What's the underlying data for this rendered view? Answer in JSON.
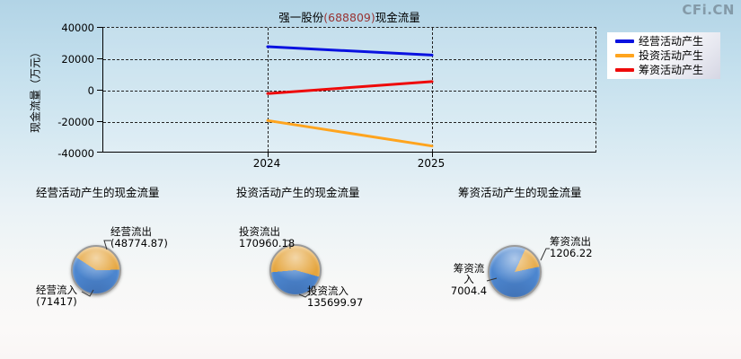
{
  "watermark": "CFi.CN",
  "colors": {
    "title_code": "#993333",
    "pie_in_blue": "#4c86cf",
    "pie_out_orange": "#e5a53d",
    "line_operating": "#0a12e0",
    "line_investing": "#ffa41e",
    "line_financing": "#ee0a0a"
  },
  "line_chart": {
    "title": {
      "prefix": "强一股份",
      "code": "(688809)",
      "suffix": "现金流量"
    },
    "y_axis": {
      "label": "现金流量（万元）",
      "ticks": [
        "40000",
        "20000",
        "0",
        "-20000",
        "-40000"
      ]
    },
    "x_axis": {
      "ticks": [
        "2024",
        "2025"
      ]
    },
    "legend": [
      {
        "label": "经营活动产生"
      },
      {
        "label": "投资活动产生"
      },
      {
        "label": "筹资活动产生"
      }
    ]
  },
  "pies": [
    {
      "title": "经营活动产生的现金流量",
      "out_label": "经营流出",
      "out_value_text": "(48774.87)",
      "in_label": "经营流入",
      "in_value_text": "(71417)"
    },
    {
      "title": "投资活动产生的现金流量",
      "out_label": "投资流出",
      "out_value_text": "170960.18",
      "in_label": "投资流入",
      "in_value_text": "135699.97"
    },
    {
      "title": "筹资活动产生的现金流量",
      "out_label": "筹资流出",
      "out_value_text": "1206.22",
      "in_label": "筹资流入",
      "in_value_text": "7004.4"
    }
  ],
  "chart_data": [
    {
      "type": "line",
      "title": "强一股份(688809)现金流量",
      "xlabel": "",
      "ylabel": "现金流量（万元）",
      "ylim": [
        -40000,
        40000
      ],
      "yticks": [
        40000,
        20000,
        0,
        -20000,
        -40000
      ],
      "x": [
        2024,
        2025
      ],
      "grid": true,
      "legend_position": "upper right outside",
      "series": [
        {
          "name": "经营活动产生",
          "color": "#0a12e0",
          "values": [
            28000,
            22642.13
          ]
        },
        {
          "name": "投资活动产生",
          "color": "#ffa41e",
          "values": [
            -19000,
            -35260.21
          ]
        },
        {
          "name": "筹资活动产生",
          "color": "#ee0a0a",
          "values": [
            -1800,
            5798.18
          ]
        }
      ]
    },
    {
      "type": "pie",
      "title": "经营活动产生的现金流量",
      "slices": [
        {
          "label": "经营流出",
          "value": 48774.87,
          "role": "out",
          "color": "#e5a53d"
        },
        {
          "label": "经营流入",
          "value": 71417,
          "role": "in",
          "color": "#4c86cf"
        }
      ]
    },
    {
      "type": "pie",
      "title": "投资活动产生的现金流量",
      "slices": [
        {
          "label": "投资流出",
          "value": 170960.18,
          "role": "out",
          "color": "#e5a53d"
        },
        {
          "label": "投资流入",
          "value": 135699.97,
          "role": "in",
          "color": "#4c86cf"
        }
      ]
    },
    {
      "type": "pie",
      "title": "筹资活动产生的现金流量",
      "slices": [
        {
          "label": "筹资流出",
          "value": 1206.22,
          "role": "out",
          "color": "#e5a53d"
        },
        {
          "label": "筹资流入",
          "value": 7004.4,
          "role": "in",
          "color": "#4c86cf"
        }
      ]
    }
  ]
}
